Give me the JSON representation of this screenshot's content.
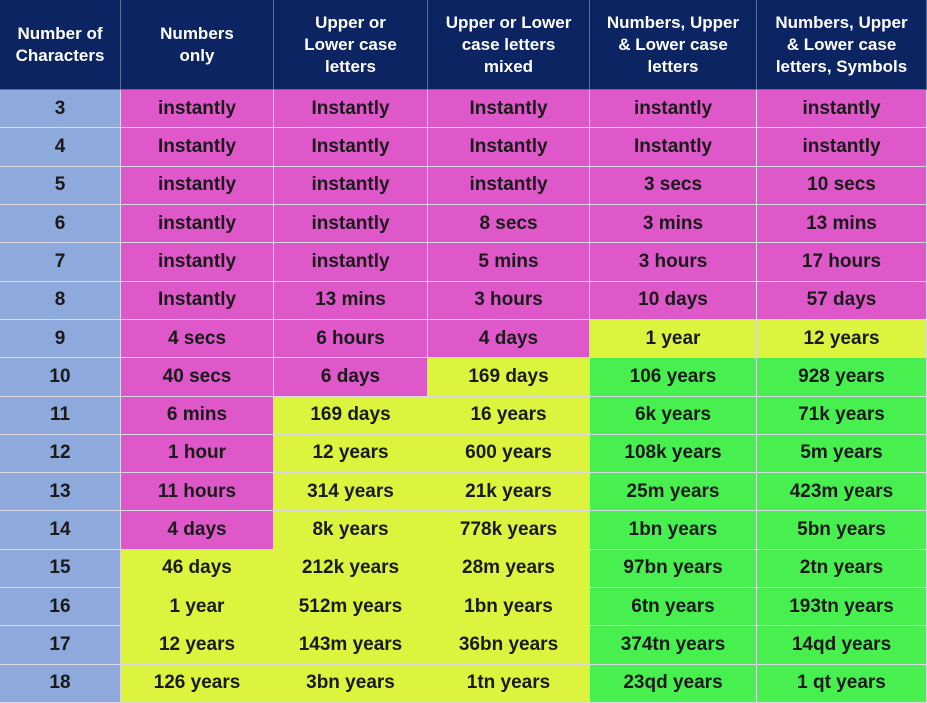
{
  "table": {
    "header": [
      "Number of\nCharacters",
      "Numbers\nonly",
      "Upper or\nLower case\nletters",
      "Upper or Lower\ncase letters\nmixed",
      "Numbers, Upper\n& Lower case\nletters",
      "Numbers, Upper\n& Lower case\nletters, Symbols"
    ],
    "rows": [
      [
        "3",
        "instantly",
        "Instantly",
        "Instantly",
        "instantly",
        "instantly"
      ],
      [
        "4",
        "Instantly",
        "Instantly",
        "Instantly",
        "Instantly",
        "instantly"
      ],
      [
        "5",
        "instantly",
        "instantly",
        "instantly",
        "3 secs",
        "10 secs"
      ],
      [
        "6",
        "instantly",
        "instantly",
        "8 secs",
        "3 mins",
        "13 mins"
      ],
      [
        "7",
        "instantly",
        "instantly",
        "5 mins",
        "3 hours",
        "17 hours"
      ],
      [
        "8",
        "Instantly",
        "13 mins",
        "3 hours",
        "10 days",
        "57 days"
      ],
      [
        "9",
        "4 secs",
        "6 hours",
        "4 days",
        "1 year",
        "12 years"
      ],
      [
        "10",
        "40 secs",
        "6 days",
        "169 days",
        "106 years",
        "928 years"
      ],
      [
        "11",
        "6 mins",
        "169 days",
        "16 years",
        "6k years",
        "71k years"
      ],
      [
        "12",
        "1 hour",
        "12 years",
        "600 years",
        "108k years",
        "5m years"
      ],
      [
        "13",
        "11 hours",
        "314 years",
        "21k years",
        "25m years",
        "423m years"
      ],
      [
        "14",
        "4 days",
        "8k years",
        "778k years",
        "1bn years",
        "5bn years"
      ],
      [
        "15",
        "46 days",
        "212k years",
        "28m years",
        "97bn years",
        "2tn years"
      ],
      [
        "16",
        "1 year",
        "512m years",
        "1bn years",
        "6tn years",
        "193tn years"
      ],
      [
        "17",
        "12 years",
        "143m years",
        "36bn years",
        "374tn years",
        "14qd years"
      ],
      [
        "18",
        "126 years",
        "3bn years",
        "1tn years",
        "23qd years",
        "1 qt years"
      ]
    ]
  }
}
